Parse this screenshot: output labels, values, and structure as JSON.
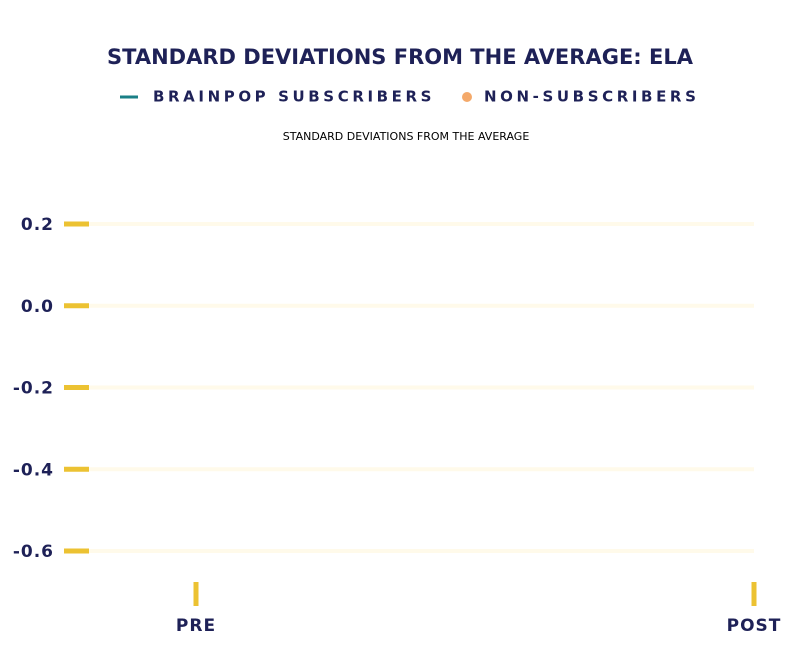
{
  "chart_data": {
    "type": "line",
    "title": "STANDARD DEVIATIONS FROM THE AVERAGE: ELA",
    "y_label": "STANDARD DEVIATIONS FROM THE AVERAGE",
    "categories": [
      "PRE",
      "POST"
    ],
    "series": [
      {
        "name": "BRAINPOP SUBSCRIBERS",
        "color": "#1a7f86",
        "marker": "line",
        "values": [
          null,
          null
        ]
      },
      {
        "name": "NON-SUBSCRIBERS",
        "color": "#f4a96a",
        "marker": "dot",
        "values": [
          null,
          null
        ]
      }
    ],
    "ylim": [
      -0.6,
      0.2
    ],
    "yticks": [
      0.2,
      {
        "value": 0,
        "label": "0.0"
      },
      -0.2,
      -0.4,
      -0.6
    ],
    "grid": true,
    "tick_color": "#ecc232",
    "grid_color": "#fffaea"
  }
}
